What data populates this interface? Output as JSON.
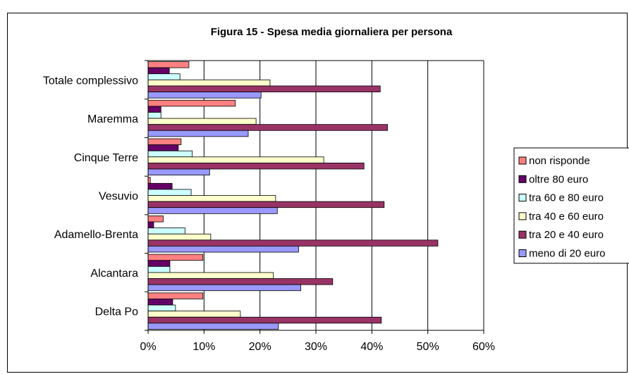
{
  "chart_data": {
    "type": "bar",
    "orientation": "horizontal",
    "title": "Figura 15 - Spesa media giornaliera per persona",
    "xlabel": "",
    "ylabel": "",
    "xlim": [
      0,
      60
    ],
    "x_ticks": [
      "0%",
      "10%",
      "20%",
      "30%",
      "40%",
      "50%",
      "60%"
    ],
    "grid": true,
    "legend_position": "right",
    "categories": [
      "Totale complessivo",
      "Maremma",
      "Cinque Terre",
      "Vesuvio",
      "Adamello-Brenta",
      "Alcantara",
      "Delta Po"
    ],
    "series": [
      {
        "name": "non risponde",
        "color": "#FF8080",
        "values": [
          7.3,
          15.6,
          5.9,
          0.4,
          2.7,
          9.8,
          9.8
        ]
      },
      {
        "name": "oltre 80 euro",
        "color": "#660066",
        "values": [
          3.8,
          2.3,
          5.4,
          4.3,
          1.0,
          3.9,
          4.4
        ]
      },
      {
        "name": "tra 60 e 80 euro",
        "color": "#CCFFFF",
        "values": [
          5.7,
          2.3,
          7.9,
          7.7,
          6.6,
          3.9,
          4.9
        ]
      },
      {
        "name": "tra 40 e 60 euro",
        "color": "#FFFFCC",
        "values": [
          21.8,
          19.3,
          31.4,
          22.8,
          11.2,
          22.4,
          16.5
        ]
      },
      {
        "name": "tra 20 e 40 euro",
        "color": "#993366",
        "values": [
          41.5,
          42.8,
          38.6,
          42.2,
          51.8,
          33.0,
          41.7
        ]
      },
      {
        "name": "meno di 20 euro",
        "color": "#9999FF",
        "values": [
          20.2,
          17.9,
          11.0,
          23.1,
          26.9,
          27.3,
          23.3
        ]
      }
    ]
  }
}
